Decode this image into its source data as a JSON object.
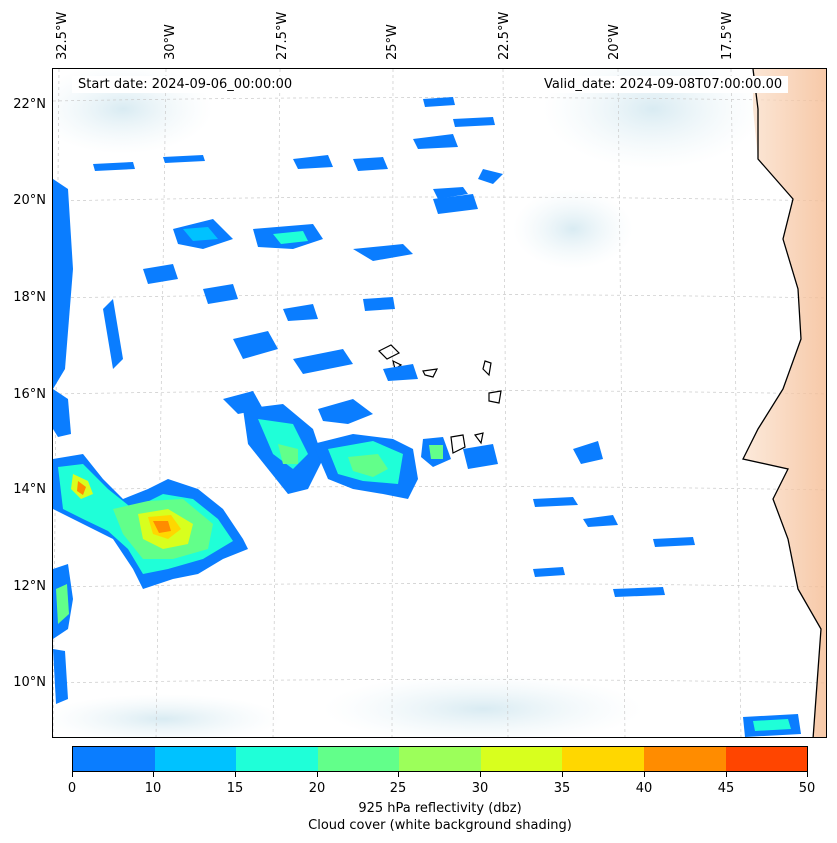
{
  "header": {
    "start_date": "Start date: 2024-09-06_00:00:00",
    "valid_date": "Valid_date: 2024-09-08T07:00:00.00"
  },
  "axes": {
    "lon_labels": [
      "32.5°W",
      "30°W",
      "27.5°W",
      "25°W",
      "22.5°W",
      "20°W",
      "17.5°W"
    ],
    "lat_labels": [
      "22°N",
      "20°N",
      "18°N",
      "16°N",
      "14°N",
      "12°N",
      "10°N"
    ]
  },
  "colorbar": {
    "ticks": [
      "0",
      "10",
      "15",
      "20",
      "25",
      "30",
      "35",
      "40",
      "45",
      "50"
    ],
    "colors": [
      "#0a7dff",
      "#00c2ff",
      "#1fffd8",
      "#62ff8a",
      "#9cff5a",
      "#d8ff1e",
      "#ffd700",
      "#ff8c00",
      "#ff4500"
    ],
    "label_line1": "925 hPa reflectivity (dbz)",
    "label_line2": "Cloud cover (white background shading)"
  }
}
